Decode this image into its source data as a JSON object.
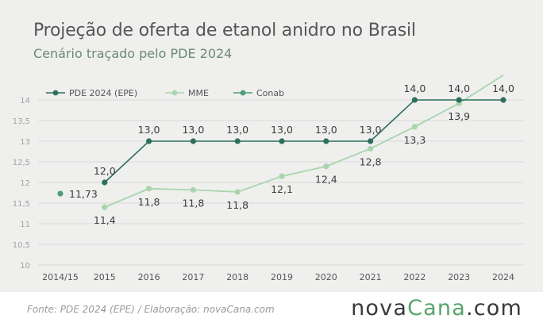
{
  "header": {
    "title": "Projeção de oferta de etanol anidro no Brasil",
    "subtitle": "Cenário traçado pelo PDE 2024"
  },
  "footer": {
    "source": "Fonte: PDE 2024 (EPE) / Elaboração: novaCana.com",
    "brand_left": "nova",
    "brand_mid": "Cana",
    "brand_right": ".com"
  },
  "colors": {
    "pde": "#2d6f5b",
    "mme": "#a9d5ad",
    "conab": "#4e9a7e",
    "grid": "#d9d9d9",
    "tick": "#8a8a8a",
    "label": "#3c3c3c"
  },
  "chart_data": {
    "type": "line",
    "categories": [
      "2014/15",
      "2015",
      "2016",
      "2017",
      "2018",
      "2019",
      "2020",
      "2021",
      "2022",
      "2023",
      "2024"
    ],
    "ylim": [
      10,
      14
    ],
    "yticks": [
      "10",
      "10,5",
      "11",
      "11,5",
      "12",
      "12,5",
      "13",
      "13,5",
      "14"
    ],
    "grid": true,
    "legend": "top-left",
    "series": [
      {
        "name": "PDE 2024 (EPE)",
        "key": "pde",
        "values": [
          null,
          12.0,
          13.0,
          13.0,
          13.0,
          13.0,
          13.0,
          13.0,
          14.0,
          14.0,
          14.0
        ],
        "labels": [
          null,
          "12,0",
          "13,0",
          "13,0",
          "13,0",
          "13,0",
          "13,0",
          "13,0",
          "14,0",
          "14,0",
          "14,0"
        ]
      },
      {
        "name": "MME",
        "key": "mme",
        "values": [
          null,
          11.4,
          11.85,
          11.82,
          11.77,
          12.15,
          12.39,
          12.82,
          13.35,
          13.92,
          14.6
        ],
        "labels": [
          null,
          "11,4",
          "11,8",
          "11,8",
          "11,8",
          "12,1",
          "12,4",
          "12,8",
          "13,3",
          "13,9",
          null
        ]
      },
      {
        "name": "Conab",
        "key": "conab",
        "values": [
          11.73,
          null,
          null,
          null,
          null,
          null,
          null,
          null,
          null,
          null,
          null
        ],
        "labels": [
          "11,73",
          null,
          null,
          null,
          null,
          null,
          null,
          null,
          null,
          null,
          null
        ]
      }
    ]
  }
}
